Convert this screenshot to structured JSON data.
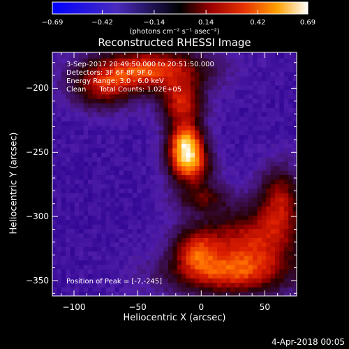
{
  "chart_data": {
    "type": "heatmap",
    "title": "Reconstructed RHESSI Image",
    "xlabel": "Heliocentric X (arcsec)",
    "ylabel": "Heliocentric Y (arcsec)",
    "xlim": [
      -117,
      75
    ],
    "ylim": [
      -362,
      -172
    ],
    "x_ticks": [
      -100,
      -50,
      0,
      50
    ],
    "x_tick_labels": [
      "−100",
      "−50",
      "0",
      "50"
    ],
    "y_ticks": [
      -200,
      -250,
      -300,
      -350
    ],
    "y_tick_labels": [
      "−200",
      "−250",
      "−300",
      "−350"
    ],
    "colorbar": {
      "min": -0.69,
      "max": 0.69,
      "ticks": [
        -0.69,
        -0.42,
        -0.14,
        0.14,
        0.42,
        0.69
      ],
      "tick_labels": [
        "−0.69",
        "−0.42",
        "−0.14",
        "0.14",
        "0.42",
        "0.69"
      ],
      "unit_label": "(photons cm⁻² s⁻¹ asec⁻²)"
    },
    "annotations": [
      "3-Sep-2017 20:49:50.000 to 20:51:50.000",
      "Detectors: 3F 6F 8F 9F 0",
      "Energy Range: 3.0 - 6.0 keV",
      "Clean      Total Counts: 1.02E+05"
    ],
    "peak_label": "Position of Peak = [-7,-245]",
    "peak": [
      -7,
      -245
    ],
    "background_value": -0.35,
    "blobs": [
      {
        "x": -12,
        "y": -244,
        "amp": 0.72,
        "sx": 10,
        "sy": 12
      },
      {
        "x": -8,
        "y": -262,
        "amp": 0.45,
        "sx": 12,
        "sy": 10
      },
      {
        "x": -40,
        "y": -185,
        "amp": 0.55,
        "sx": 32,
        "sy": 12
      },
      {
        "x": -78,
        "y": -200,
        "amp": 0.35,
        "sx": 18,
        "sy": 12
      },
      {
        "x": -15,
        "y": -212,
        "amp": 0.45,
        "sx": 12,
        "sy": 12
      },
      {
        "x": 0,
        "y": -285,
        "amp": 0.28,
        "sx": 15,
        "sy": 8
      },
      {
        "x": 40,
        "y": -318,
        "amp": 0.45,
        "sx": 30,
        "sy": 18
      },
      {
        "x": 62,
        "y": -285,
        "amp": 0.38,
        "sx": 12,
        "sy": 18
      },
      {
        "x": 20,
        "y": -345,
        "amp": 0.45,
        "sx": 35,
        "sy": 12
      },
      {
        "x": -5,
        "y": -325,
        "amp": 0.35,
        "sx": 12,
        "sy": 12
      }
    ]
  },
  "footer_date": "4-Apr-2018 00:05"
}
